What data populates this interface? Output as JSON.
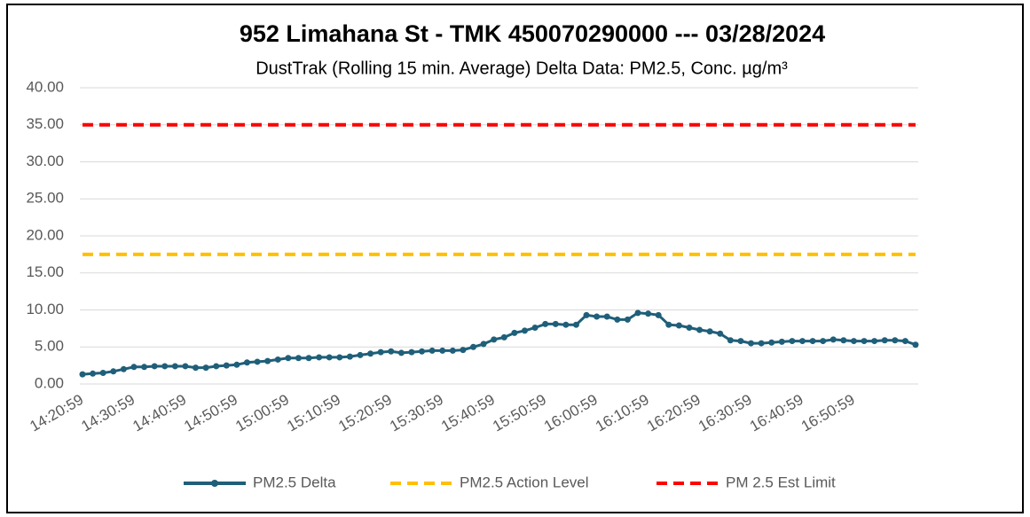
{
  "chart_data": {
    "type": "line",
    "title": "952 Limahana St - TMK 450070290000 --- 03/28/2024",
    "subtitle": "DustTrak (Rolling 15 min. Average) Delta Data: PM2.5, Conc. µg/m³",
    "categories": [
      "14:20:59",
      null,
      null,
      null,
      null,
      "14:30:59",
      null,
      null,
      null,
      null,
      "14:40:59",
      null,
      null,
      null,
      null,
      "14:50:59",
      null,
      null,
      null,
      null,
      "15:00:59",
      null,
      null,
      null,
      null,
      "15:10:59",
      null,
      null,
      null,
      null,
      "15:20:59",
      null,
      null,
      null,
      null,
      "15:30:59",
      null,
      null,
      null,
      null,
      "15:40:59",
      null,
      null,
      null,
      null,
      "15:50:59",
      null,
      null,
      null,
      null,
      "16:00:59",
      null,
      null,
      null,
      null,
      "16:10:59",
      null,
      null,
      null,
      null,
      "16:20:59",
      null,
      null,
      null,
      null,
      "16:30:59",
      null,
      null,
      null,
      null,
      "16:40:59",
      null,
      null,
      null,
      null,
      "16:50:59",
      null,
      null,
      null,
      null,
      null,
      null
    ],
    "series": [
      {
        "name": "PM2.5 Delta",
        "color": "#1f5f7a",
        "values": [
          1.3,
          1.4,
          1.5,
          1.7,
          2.0,
          2.3,
          2.3,
          2.4,
          2.4,
          2.4,
          2.4,
          2.2,
          2.2,
          2.4,
          2.5,
          2.6,
          2.9,
          3.0,
          3.1,
          3.3,
          3.5,
          3.5,
          3.5,
          3.6,
          3.6,
          3.6,
          3.7,
          3.9,
          4.1,
          4.3,
          4.4,
          4.2,
          4.3,
          4.4,
          4.5,
          4.5,
          4.5,
          4.6,
          5.0,
          5.4,
          6.0,
          6.3,
          6.9,
          7.2,
          7.6,
          8.1,
          8.1,
          8.0,
          8.0,
          9.3,
          9.1,
          9.1,
          8.7,
          8.7,
          9.6,
          9.5,
          9.3,
          8.0,
          7.9,
          7.6,
          7.3,
          7.1,
          6.8,
          5.9,
          5.8,
          5.5,
          5.5,
          5.6,
          5.7,
          5.8,
          5.8,
          5.8,
          5.8,
          6.0,
          5.9,
          5.8,
          5.8,
          5.8,
          5.9,
          5.9,
          5.8,
          5.3
        ]
      },
      {
        "name": "PM2.5 Action Level",
        "color": "#ffc000",
        "values": [
          17.5,
          17.5,
          17.5,
          17.5,
          17.5,
          17.5,
          17.5,
          17.5,
          17.5,
          17.5,
          17.5,
          17.5,
          17.5,
          17.5,
          17.5,
          17.5,
          17.5,
          17.5,
          17.5,
          17.5,
          17.5,
          17.5,
          17.5,
          17.5,
          17.5,
          17.5,
          17.5,
          17.5,
          17.5,
          17.5,
          17.5,
          17.5,
          17.5,
          17.5,
          17.5,
          17.5,
          17.5,
          17.5,
          17.5,
          17.5,
          17.5,
          17.5,
          17.5,
          17.5,
          17.5,
          17.5,
          17.5,
          17.5,
          17.5,
          17.5,
          17.5,
          17.5,
          17.5,
          17.5,
          17.5,
          17.5,
          17.5,
          17.5,
          17.5,
          17.5,
          17.5,
          17.5,
          17.5,
          17.5,
          17.5,
          17.5,
          17.5,
          17.5,
          17.5,
          17.5,
          17.5,
          17.5,
          17.5,
          17.5,
          17.5,
          17.5,
          17.5,
          17.5,
          17.5,
          17.5,
          17.5,
          17.5
        ]
      },
      {
        "name": "PM 2.5 Est Limit",
        "color": "#ff0000",
        "values": [
          35,
          35,
          35,
          35,
          35,
          35,
          35,
          35,
          35,
          35,
          35,
          35,
          35,
          35,
          35,
          35,
          35,
          35,
          35,
          35,
          35,
          35,
          35,
          35,
          35,
          35,
          35,
          35,
          35,
          35,
          35,
          35,
          35,
          35,
          35,
          35,
          35,
          35,
          35,
          35,
          35,
          35,
          35,
          35,
          35,
          35,
          35,
          35,
          35,
          35,
          35,
          35,
          35,
          35,
          35,
          35,
          35,
          35,
          35,
          35,
          35,
          35,
          35,
          35,
          35,
          35,
          35,
          35,
          35,
          35,
          35,
          35,
          35,
          35,
          35,
          35,
          35,
          35,
          35,
          35,
          35,
          35
        ]
      }
    ],
    "ylim": [
      0,
      40
    ],
    "yticks": [
      {
        "value": 0,
        "label": "0.00"
      },
      {
        "value": 5,
        "label": "5.00"
      },
      {
        "value": 10,
        "label": "10.00"
      },
      {
        "value": 15,
        "label": "15.00"
      },
      {
        "value": 20,
        "label": "20.00"
      },
      {
        "value": 25,
        "label": "25.00"
      },
      {
        "value": 30,
        "label": "30.00"
      },
      {
        "value": 35,
        "label": "35.00"
      },
      {
        "value": 40,
        "label": "40.00"
      }
    ],
    "grid": true,
    "legend": "bottom"
  }
}
